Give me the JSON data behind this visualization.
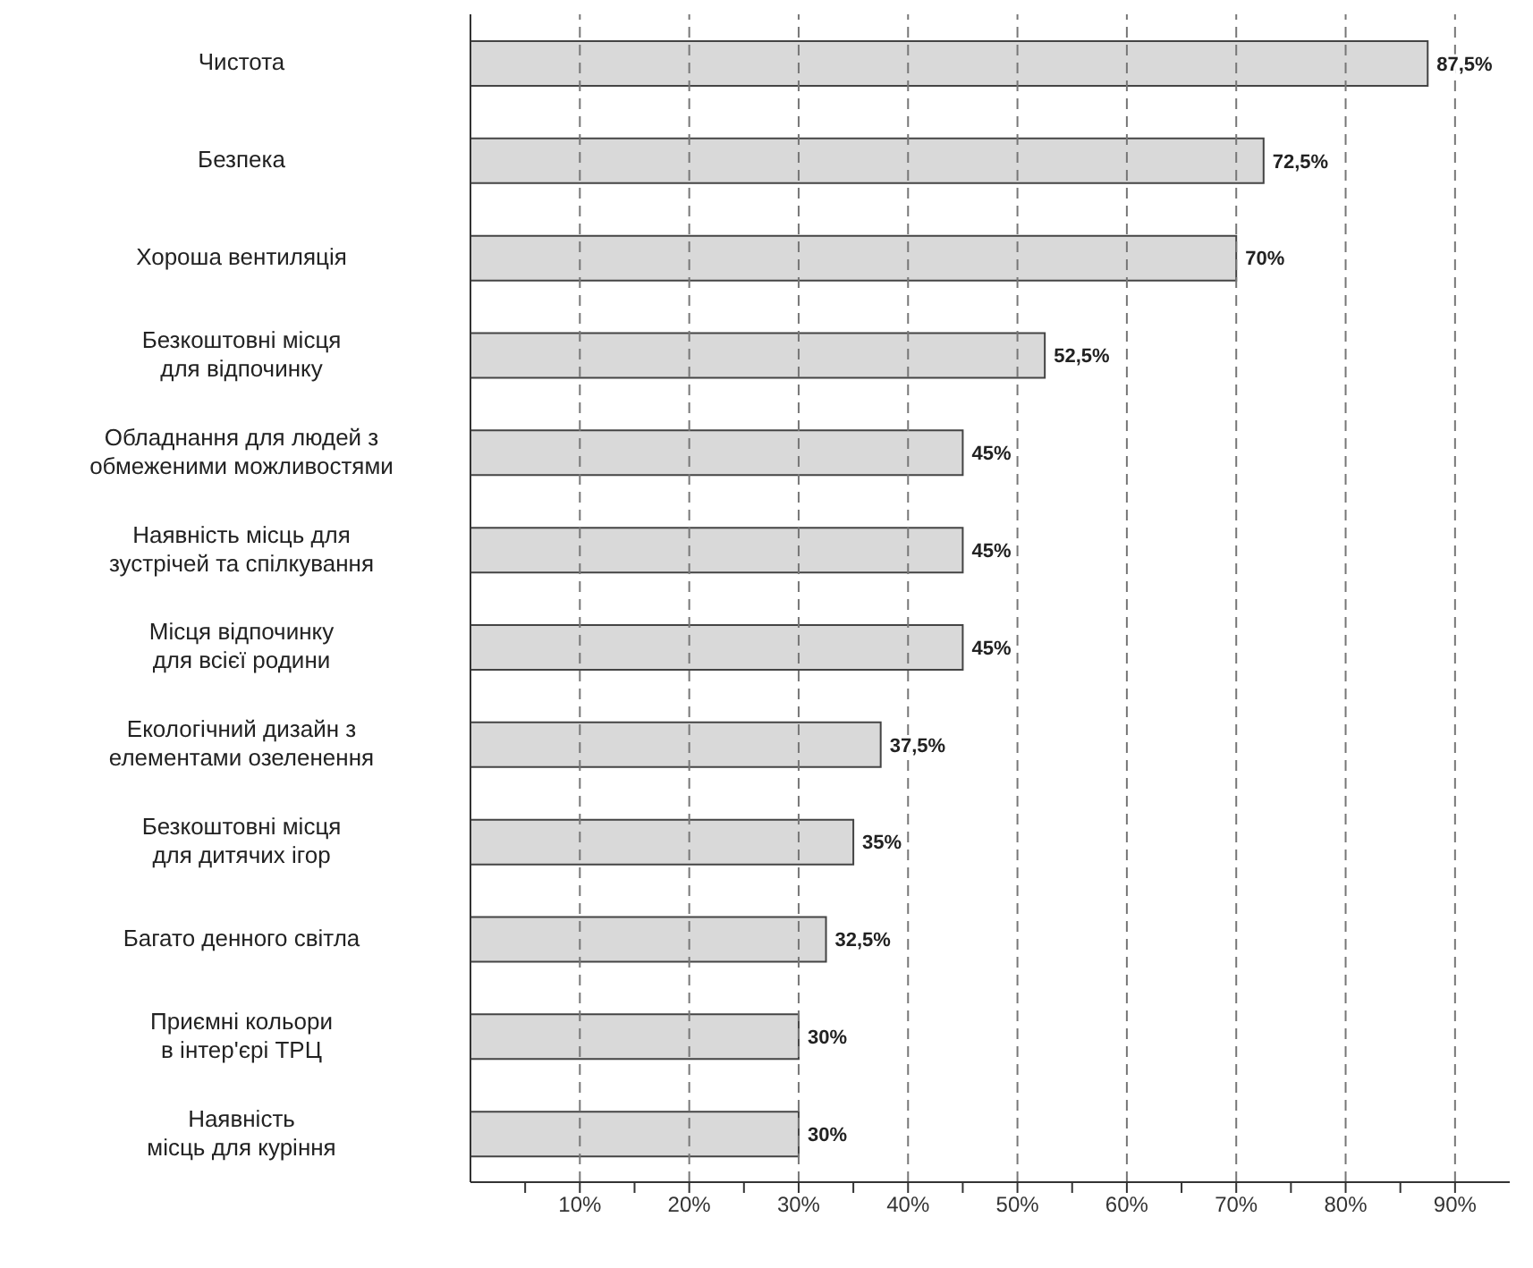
{
  "chart_data": {
    "type": "bar",
    "orientation": "horizontal",
    "categories": [
      "Чистота",
      "Безпека",
      "Хороша вентиляція",
      "Безкоштовні місця\nдля відпочинку",
      "Обладнання для людей з\nобмеженими можливостями",
      "Наявність місць для\nзустрічей та спілкування",
      "Місця відпочинку\nдля всієї родини",
      "Екологічний дизайн з\nелементами озеленення",
      "Безкоштовні місця\nдля дитячих ігор",
      "Багато денного світла",
      "Приємні кольори\nв інтер'єрі ТРЦ",
      "Наявність\nмісць для куріння"
    ],
    "values": [
      87.5,
      72.5,
      70,
      52.5,
      45,
      45,
      45,
      37.5,
      35,
      32.5,
      30,
      30
    ],
    "value_labels": [
      "87,5%",
      "72,5%",
      "70%",
      "52,5%",
      "45%",
      "45%",
      "45%",
      "37,5%",
      "35%",
      "32,5%",
      "30%",
      "30%"
    ],
    "color": "#d9d9d9",
    "xlim": [
      0,
      95
    ],
    "xticks": [
      {
        "value": 5,
        "label": null
      },
      {
        "value": 10,
        "label": "10%"
      },
      {
        "value": 15,
        "label": null
      },
      {
        "value": 20,
        "label": "20%"
      },
      {
        "value": 25,
        "label": null
      },
      {
        "value": 30,
        "label": "30%"
      },
      {
        "value": 35,
        "label": null
      },
      {
        "value": 40,
        "label": "40%"
      },
      {
        "value": 45,
        "label": null
      },
      {
        "value": 50,
        "label": "50%"
      },
      {
        "value": 55,
        "label": null
      },
      {
        "value": 60,
        "label": "60%"
      },
      {
        "value": 65,
        "label": null
      },
      {
        "value": 70,
        "label": "70%"
      },
      {
        "value": 75,
        "label": null
      },
      {
        "value": 80,
        "label": "80%"
      },
      {
        "value": 85,
        "label": null
      },
      {
        "value": 90,
        "label": "90%"
      }
    ],
    "grid": "x"
  }
}
